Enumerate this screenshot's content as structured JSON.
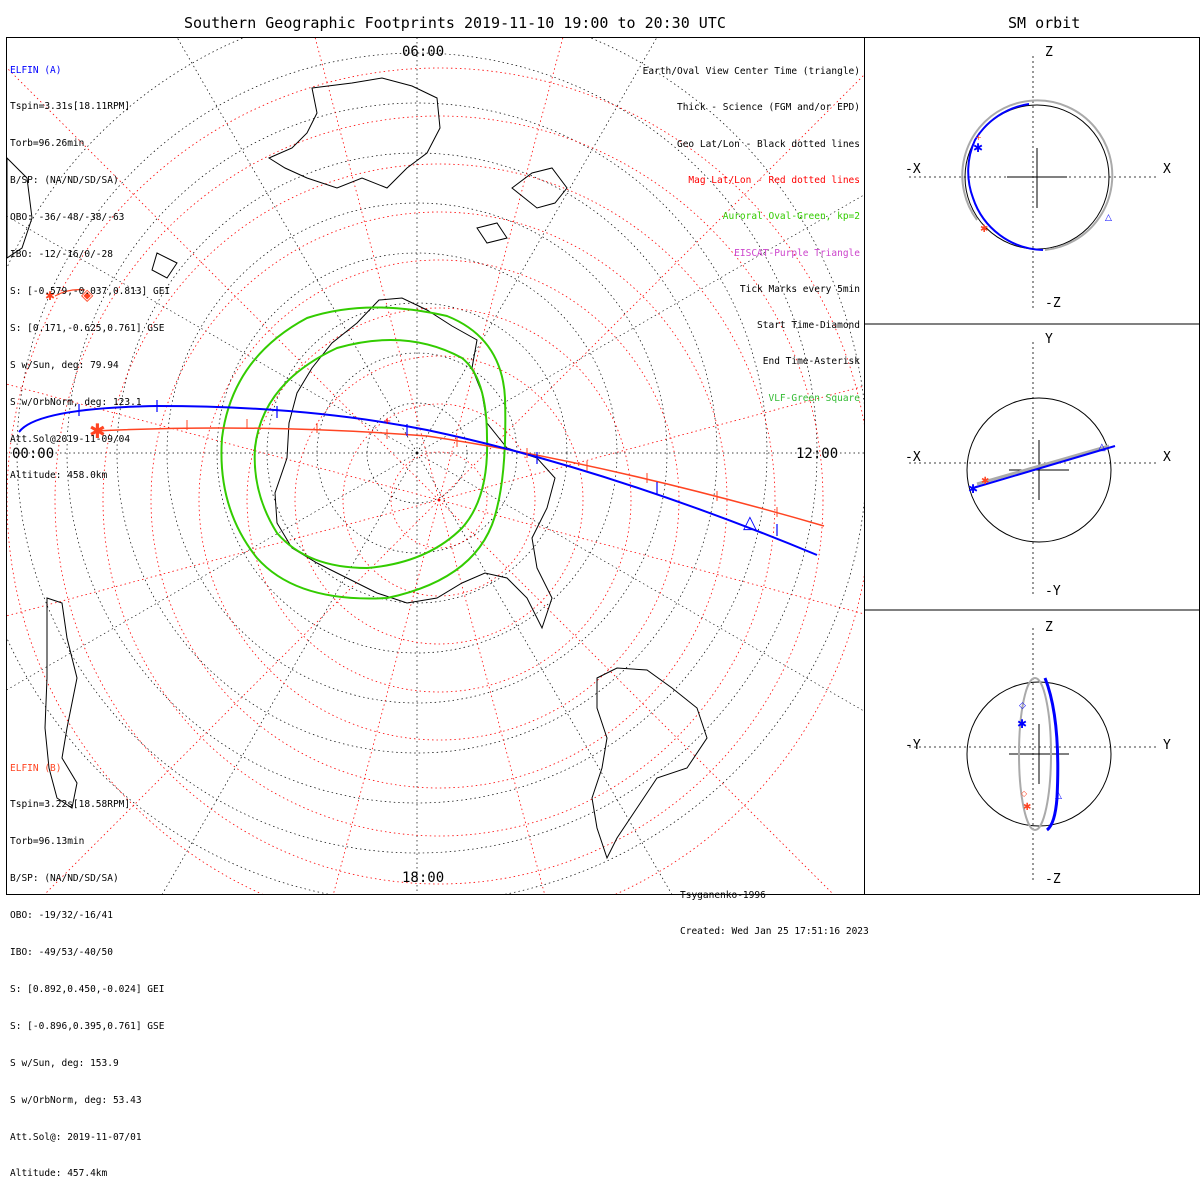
{
  "title": "Southern Geographic Footprints 2019-11-10 19:00 to 20:30 UTC",
  "orbit_title": "SM orbit",
  "colors": {
    "elfin_a": "#0000ff",
    "elfin_b": "#ff4422",
    "geo_grid": "#000000",
    "mag_grid": "#ff0000",
    "oval": "#33cc00",
    "eiscat": "#cc44cc",
    "vlf": "#33bb33",
    "orbit_gray": "#aaaaaa"
  },
  "elfin_a": {
    "name": "ELFIN (A)",
    "lines": [
      "Tspin=3.31s[18.11RPM]",
      "Torb=96.26min",
      "B/SP: (NA/ND/SD/SA)",
      "OBO: -36/-48/-38/-63",
      "IBO: -12/-16/0/-28",
      "S: [-0.579,-0.037,0.813] GEI",
      "S: [0.171,-0.625,0.761] GSE",
      "S w/Sun, deg: 79.94",
      "S w/OrbNorm, deg: 123.1",
      "Att.Sol@2019-11-09/04",
      "Altitude: 458.0km"
    ]
  },
  "elfin_b": {
    "name": "ELFIN (B)",
    "lines": [
      "Tspin=3.22s[18.58RPM]",
      "Torb=96.13min",
      "B/SP: (NA/ND/SD/SA)",
      "OBO: -19/32/-16/41",
      "IBO: -49/53/-40/50",
      "S: [0.892,0.450,-0.024] GEI",
      "S: [-0.896,0.395,0.761] GSE",
      "S w/Sun, deg: 153.9",
      "S w/OrbNorm, deg: 53.43",
      "Att.Sol@: 2019-11-07/01",
      "Altitude: 457.4km"
    ]
  },
  "legend": [
    {
      "text": "Earth/Oval View Center Time (triangle)",
      "color": "#000000"
    },
    {
      "text": "Thick - Science (FGM and/or EPD)",
      "color": "#000000"
    },
    {
      "text": "Geo Lat/Lon - Black dotted lines",
      "color": "#000000"
    },
    {
      "text": "Mag Lat/Lon - Red dotted lines",
      "color": "#ff0000"
    },
    {
      "text": "Auroral Oval-Green, kp=2",
      "color": "#33cc00"
    },
    {
      "text": "EISCAT-Purple Triangle",
      "color": "#cc44cc"
    },
    {
      "text": "Tick Marks every 5min",
      "color": "#000000"
    },
    {
      "text": "Start Time-Diamond",
      "color": "#000000"
    },
    {
      "text": "End Time-Asterisk",
      "color": "#000000"
    },
    {
      "text": "VLF-Green Square",
      "color": "#33bb33"
    }
  ],
  "time_labels": {
    "top": "06:00",
    "left": "00:00",
    "right": "12:00",
    "bottom": "18:00"
  },
  "credits": [
    "Tsyganenko-1996",
    "Created: Wed Jan 25 17:51:16 2023"
  ],
  "orbit_panels": [
    {
      "up": "Z",
      "down": "-Z",
      "left": "-X",
      "right": "X"
    },
    {
      "up": "Y",
      "down": "-Y",
      "left": "-X",
      "right": "X"
    },
    {
      "up": "Z",
      "down": "-Z",
      "left": "-Y",
      "right": "Y"
    }
  ]
}
